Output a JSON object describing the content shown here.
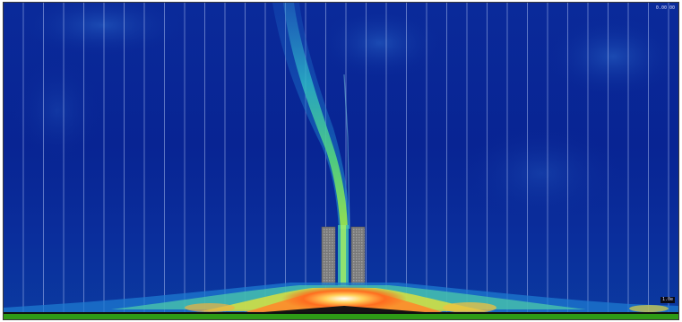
{
  "image": {
    "kind": "simulation-visualization",
    "subject": "exhaust-jet-impinging-on-ground",
    "colors": {
      "background": "#0a2a9a",
      "ground": "#2e9b16",
      "plume_core": "#3fc8c0",
      "hot": "#ff6a1e",
      "column": "#8a8a8a"
    }
  },
  "readouts": {
    "top_right": "0.00 00",
    "bottom_right": "1.0e"
  }
}
